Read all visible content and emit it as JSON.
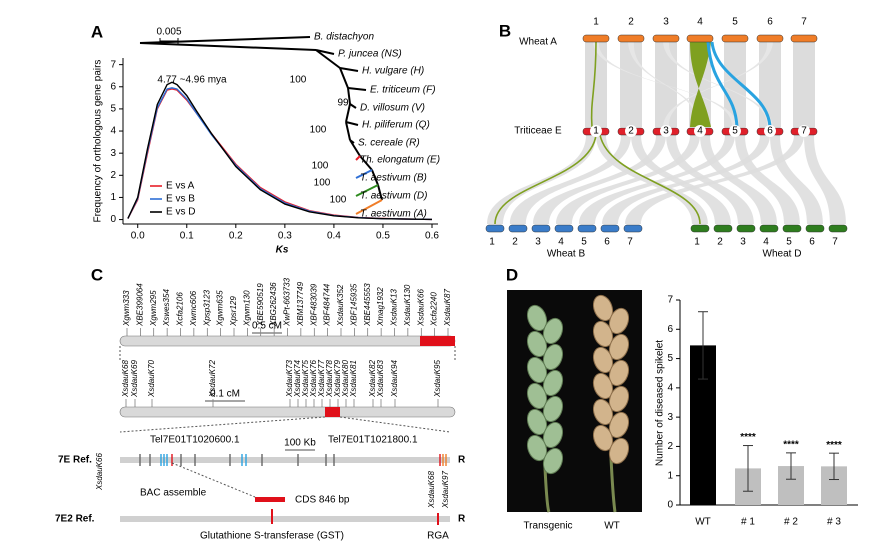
{
  "panel_labels": [
    "A",
    "B",
    "C",
    "D"
  ],
  "chart_data": [
    {
      "type": "line",
      "x_label": "Ks",
      "y_label": "Frequency of orthologous gene pairs",
      "annotation": "4.77 ~4.96 mya",
      "legend": "lower-left",
      "x": [
        -0.02,
        0,
        0.02,
        0.04,
        0.06,
        0.07,
        0.08,
        0.1,
        0.12,
        0.15,
        0.2,
        0.25,
        0.3,
        0.35,
        0.4,
        0.45,
        0.5,
        0.55,
        0.6
      ],
      "series": [
        {
          "name": "E vs A",
          "color": "#e8202a",
          "values": [
            0.05,
            0.9,
            3.0,
            5.0,
            5.85,
            5.9,
            5.85,
            5.4,
            4.8,
            3.9,
            2.5,
            1.45,
            0.8,
            0.4,
            0.2,
            0.1,
            0.05,
            0.02,
            0.01
          ]
        },
        {
          "name": "E vs B",
          "color": "#2f6fd6",
          "values": [
            0.05,
            0.95,
            3.1,
            5.05,
            5.9,
            5.95,
            5.9,
            5.45,
            4.8,
            3.85,
            2.45,
            1.4,
            0.75,
            0.38,
            0.18,
            0.09,
            0.04,
            0.02,
            0.01
          ]
        },
        {
          "name": "E vs D",
          "color": "#000000",
          "values": [
            0.05,
            1.0,
            3.2,
            5.2,
            6.1,
            6.2,
            6.1,
            5.6,
            4.9,
            3.9,
            2.4,
            1.35,
            0.7,
            0.35,
            0.17,
            0.08,
            0.04,
            0.02,
            0.01
          ]
        }
      ],
      "xlim": [
        -0.03,
        0.6
      ],
      "xticks": [
        {
          "value": 0,
          "label": "0.0"
        },
        0.1,
        0.2,
        0.3,
        0.4,
        0.5,
        0.6
      ],
      "ylim": [
        -0.2,
        7.3
      ],
      "yticks": [
        0,
        1,
        2,
        3,
        4,
        5,
        6,
        7
      ]
    },
    {
      "type": "bar",
      "y_label": "Number of diseased spikelet",
      "categories": [
        "WT",
        "# 1",
        "# 2",
        "# 3"
      ],
      "values": [
        5.45,
        1.25,
        1.33,
        1.32
      ],
      "errors": [
        1.15,
        0.78,
        0.45,
        0.45
      ],
      "colors": [
        "#000000",
        "#bfbfbf",
        "#bfbfbf",
        "#bfbfbf"
      ],
      "significance": [
        null,
        "****",
        "****",
        "****"
      ],
      "ylim": [
        0,
        7
      ],
      "yticks": [
        0,
        1,
        2,
        3,
        4,
        5,
        6,
        7
      ]
    }
  ],
  "tree": {
    "scale_label": "0.005",
    "taxa": [
      {
        "name": "B. distachyon",
        "color": "#000000"
      },
      {
        "name": "P. juncea (NS)",
        "color": "#000000"
      },
      {
        "name": "H. vulgare (H)",
        "color": "#000000"
      },
      {
        "name": "E. triticeum (F)",
        "color": "#000000"
      },
      {
        "name": "D. villosum (V)",
        "color": "#000000"
      },
      {
        "name": "H. piliferum (Q)",
        "color": "#000000"
      },
      {
        "name": "S. cereale (R)",
        "color": "#000000"
      },
      {
        "name": "Th. elongatum (E)",
        "color": "#e8202a"
      },
      {
        "name": "T. aestivum (B)",
        "color": "#2f6fd6"
      },
      {
        "name": "T. aestivum (D)",
        "color": "#2e8b1e"
      },
      {
        "name": "T. aestivum (A)",
        "color": "#f07d28"
      }
    ],
    "bootstrap": [
      "100",
      "99",
      "100",
      "100",
      "100",
      "100"
    ]
  },
  "synteny": {
    "rows": [
      {
        "name": "Wheat A",
        "color": "#f07d28",
        "chromosomes": [
          "1",
          "2",
          "3",
          "4",
          "5",
          "6",
          "7"
        ]
      },
      {
        "name": "Triticeae E",
        "color": "#e0202a",
        "chromosomes": [
          "1",
          "2",
          "3",
          "4",
          "5",
          "6",
          "7"
        ]
      },
      {
        "name": "Wheat B",
        "color": "#3a7cc9",
        "chromosomes": [
          "1",
          "2",
          "3",
          "4",
          "5",
          "6",
          "7"
        ]
      },
      {
        "name": "Wheat D",
        "color": "#2e7d1e",
        "chromosomes": [
          "1",
          "2",
          "3",
          "4",
          "5",
          "6",
          "7"
        ]
      }
    ]
  },
  "genetic_map": {
    "top_markers": [
      "Xgwm333",
      "XBE399064",
      "Xgwm295",
      "Xswes354",
      "Xcfa2106",
      "Xwmc606",
      "Xpsp3123",
      "Xgwm635",
      "Xpsr129",
      "Xgwm130",
      "XBE590519",
      "XBG262436",
      "XwPt-663733",
      "XBM137749",
      "XBF483039",
      "XBF484744",
      "XsdauK352",
      "XBF145935",
      "XBE445553",
      "Xmag1932",
      "XsdauK13",
      "XsdauK130",
      "XsdauK66",
      "Xcfa2240",
      "XsdauK87"
    ],
    "top_scale": "0.5 cM",
    "fine_markers": [
      "XsdauK68",
      "XsdauK69",
      "XsdauK70",
      "XsdauK72",
      "XsdauK73",
      "XsdauK74",
      "XsdauK75",
      "XsdauK76",
      "XsdauK77",
      "XsdauK78",
      "XsdauK79",
      "XsdauK80",
      "XsdauK81",
      "XsdauK82",
      "XsdauK83",
      "XsdauK94",
      "XsdauK95"
    ],
    "fine_scale": "0.1 cM",
    "ref_label": "7E  Ref.",
    "ref_end": "R",
    "gene_left": "Tel7E01T1020600.1",
    "gene_right": "Tel7E01T1021800.1",
    "ref_scale": "100 Kb",
    "ref_marker": "XsdauK66",
    "bac_label": "7E2  Ref.",
    "bac_end": "R",
    "bac_title": "BAC assemble",
    "cds": "CDS 846 bp",
    "gst": "Glutathione S-transferase (GST)",
    "bac_markers": [
      "XsdauK68",
      "XsdauK97"
    ],
    "rga": "RGA"
  },
  "photo": {
    "labels": [
      "Transgenic",
      "WT"
    ]
  }
}
